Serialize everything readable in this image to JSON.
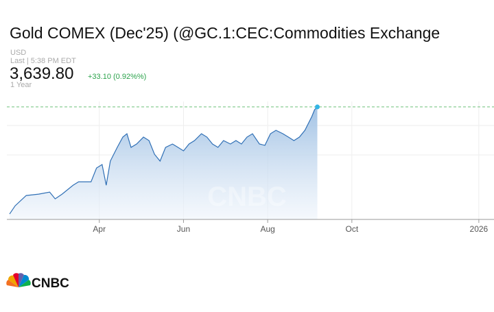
{
  "chart_data": {
    "type": "area",
    "title": "Gold COMEX (Dec'25) (@GC.1:CEC:Commodities Exchange",
    "currency": "USD",
    "last_time": "Last | 5:38 PM EDT",
    "price": "3,639.80",
    "change": "+33.10 (0.92%%)",
    "range": "1 Year",
    "logo": "CNBC",
    "color": "#2f6fb5",
    "x": [
      "2025-01-26",
      "2025-01-30",
      "2025-02-07",
      "2025-02-16",
      "2025-02-24",
      "2025-02-28",
      "2025-03-05",
      "2025-03-13",
      "2025-03-17",
      "2025-03-26",
      "2025-03-30",
      "2025-04-03",
      "2025-04-06",
      "2025-04-09",
      "2025-04-14",
      "2025-04-18",
      "2025-04-21",
      "2025-04-24",
      "2025-04-28",
      "2025-05-03",
      "2025-05-07",
      "2025-05-11",
      "2025-05-15",
      "2025-05-19",
      "2025-05-24",
      "2025-05-28",
      "2025-06-01",
      "2025-06-05",
      "2025-06-09",
      "2025-06-14",
      "2025-06-18",
      "2025-06-22",
      "2025-06-26",
      "2025-06-30",
      "2025-07-05",
      "2025-07-09",
      "2025-07-13",
      "2025-07-17",
      "2025-07-21",
      "2025-07-26",
      "2025-07-30",
      "2025-08-03",
      "2025-08-07",
      "2025-08-12",
      "2025-08-16",
      "2025-08-20",
      "2025-08-24",
      "2025-08-28",
      "2025-09-02",
      "2025-09-04",
      "2025-09-06"
    ],
    "values": [
      2650,
      2726,
      2821,
      2834,
      2853,
      2790,
      2834,
      2916,
      2948,
      2948,
      3075,
      3107,
      2916,
      3139,
      3266,
      3361,
      3392,
      3266,
      3297,
      3361,
      3329,
      3202,
      3139,
      3266,
      3297,
      3266,
      3234,
      3297,
      3329,
      3392,
      3361,
      3297,
      3266,
      3329,
      3297,
      3329,
      3297,
      3361,
      3392,
      3297,
      3285,
      3392,
      3424,
      3392,
      3361,
      3329,
      3361,
      3424,
      3551,
      3614,
      3639.8
    ],
    "xlim": [
      "2025-01-24",
      "2026-01-12"
    ],
    "xticks": [
      {
        "value": "2025-04-01",
        "label": "Apr"
      },
      {
        "value": "2025-06-01",
        "label": "Jun"
      },
      {
        "value": "2025-08-01",
        "label": "Aug"
      },
      {
        "value": "2025-10-01",
        "label": "Oct"
      },
      {
        "value": "2026-01-01",
        "label": "2026"
      }
    ],
    "ylim": [
      2600,
      3690
    ]
  }
}
